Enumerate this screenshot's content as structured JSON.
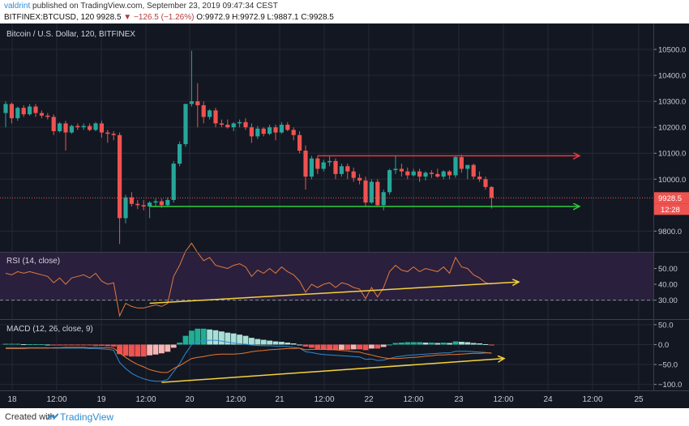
{
  "header": {
    "user": "valdrint",
    "published": "published on TradingView.com, September 23, 2019 09:47:34 CEST",
    "symbol": "BITFINEX:BTCUSD, 120",
    "last": "9928.5",
    "change": "▼ −126.5 (−1.26%)",
    "ohlc": "O:9972.9 H:9972.9 L:9887.1 C:9928.5"
  },
  "footer": {
    "text": "Created with",
    "brand": "TradingView"
  },
  "colors": {
    "background": "#131722",
    "grid": "#252a36",
    "up": "#26a69a",
    "down": "#ef5350",
    "resistance": "#e8383d",
    "support": "#2ecc40",
    "trendline": "#f4d23c",
    "rsi_line": "#e07a3b",
    "rsi_band": "#2a1f3d",
    "macd_line": "#2f8bd3",
    "signal_line": "#e8772e",
    "hist_up_strong": "#1faf95",
    "hist_up_weak": "#a8e0d8",
    "hist_down_strong": "#ef5350",
    "hist_down_weak": "#f5b5b3"
  },
  "chart_data": [
    {
      "type": "candlestick",
      "title": "Bitcoin / U.S. Dollar, 120, BITFINEX",
      "ylim": [
        9720,
        10600
      ],
      "y_ticks": [
        "10500.0",
        "10400.0",
        "10300.0",
        "10200.0",
        "10100.0",
        "10000.0",
        "9800.0"
      ],
      "y_tick_values": [
        10500,
        10400,
        10300,
        10200,
        10100,
        10000,
        9800
      ],
      "price_label": "9928.5",
      "countdown_label": "12:28",
      "x_ticks": [
        "18",
        "12:00",
        "19",
        "12:00",
        "20",
        "12:00",
        "21",
        "12:00",
        "22",
        "12:00",
        "23",
        "12:00",
        "24",
        "12:00",
        "25"
      ],
      "candles": [
        [
          10255,
          10300,
          10200,
          10290
        ],
        [
          10290,
          10295,
          10215,
          10235
        ],
        [
          10235,
          10280,
          10225,
          10275
        ],
        [
          10275,
          10285,
          10240,
          10250
        ],
        [
          10250,
          10290,
          10245,
          10280
        ],
        [
          10280,
          10290,
          10240,
          10255
        ],
        [
          10255,
          10265,
          10235,
          10245
        ],
        [
          10245,
          10255,
          10230,
          10240
        ],
        [
          10240,
          10250,
          10170,
          10185
        ],
        [
          10185,
          10220,
          10180,
          10215
        ],
        [
          10215,
          10225,
          10110,
          10180
        ],
        [
          10180,
          10210,
          10175,
          10205
        ],
        [
          10205,
          10215,
          10190,
          10200
        ],
        [
          10200,
          10215,
          10190,
          10205
        ],
        [
          10205,
          10215,
          10185,
          10190
        ],
        [
          10190,
          10220,
          10185,
          10215
        ],
        [
          10215,
          10225,
          10160,
          10180
        ],
        [
          10180,
          10190,
          10140,
          10175
        ],
        [
          10175,
          10185,
          10150,
          10170
        ],
        [
          10170,
          10180,
          9750,
          9850
        ],
        [
          9850,
          9940,
          9830,
          9930
        ],
        [
          9930,
          9950,
          9895,
          9905
        ],
        [
          9905,
          9920,
          9885,
          9900
        ],
        [
          9900,
          9920,
          9880,
          9895
        ],
        [
          9895,
          9915,
          9850,
          9910
        ],
        [
          9910,
          9925,
          9895,
          9915
        ],
        [
          9915,
          9925,
          9890,
          9900
        ],
        [
          9900,
          9930,
          9895,
          9920
        ],
        [
          9920,
          10070,
          9910,
          10060
        ],
        [
          10060,
          10145,
          10050,
          10135
        ],
        [
          10135,
          10290,
          10125,
          10290
        ],
        [
          10290,
          10495,
          10280,
          10300
        ],
        [
          10300,
          10370,
          10200,
          10285
        ],
        [
          10285,
          10300,
          10215,
          10240
        ],
        [
          10240,
          10270,
          10230,
          10265
        ],
        [
          10265,
          10275,
          10200,
          10215
        ],
        [
          10215,
          10230,
          10200,
          10210
        ],
        [
          10210,
          10230,
          10195,
          10200
        ],
        [
          10200,
          10220,
          10185,
          10215
        ],
        [
          10215,
          10230,
          10200,
          10220
        ],
        [
          10220,
          10235,
          10190,
          10200
        ],
        [
          10200,
          10215,
          10140,
          10165
        ],
        [
          10165,
          10205,
          10155,
          10195
        ],
        [
          10195,
          10200,
          10165,
          10175
        ],
        [
          10175,
          10210,
          10170,
          10200
        ],
        [
          10200,
          10210,
          10150,
          10180
        ],
        [
          10180,
          10220,
          10175,
          10210
        ],
        [
          10210,
          10220,
          10185,
          10190
        ],
        [
          10190,
          10200,
          10150,
          10170
        ],
        [
          10170,
          10185,
          10100,
          10110
        ],
        [
          10110,
          10130,
          9960,
          10010
        ],
        [
          10010,
          10090,
          10000,
          10080
        ],
        [
          10080,
          10090,
          10020,
          10040
        ],
        [
          10040,
          10075,
          10030,
          10065
        ],
        [
          10065,
          10090,
          10050,
          10070
        ],
        [
          10070,
          10080,
          10000,
          10020
        ],
        [
          10020,
          10060,
          10010,
          10050
        ],
        [
          10050,
          10060,
          10000,
          10030
        ],
        [
          10030,
          10045,
          9990,
          10005
        ],
        [
          10005,
          10020,
          9980,
          9995
        ],
        [
          9995,
          10010,
          9895,
          9910
        ],
        [
          9910,
          10000,
          9905,
          9990
        ],
        [
          9990,
          10000,
          9895,
          9900
        ],
        [
          9900,
          9960,
          9880,
          9950
        ],
        [
          9950,
          10040,
          9940,
          10035
        ],
        [
          10035,
          10090,
          10020,
          10040
        ],
        [
          10040,
          10060,
          10010,
          10030
        ],
        [
          10030,
          10045,
          10000,
          10015
        ],
        [
          10015,
          10040,
          10010,
          10030
        ],
        [
          10030,
          10040,
          9990,
          10010
        ],
        [
          10010,
          10030,
          9995,
          10025
        ],
        [
          10025,
          10035,
          10005,
          10020
        ],
        [
          10020,
          10040,
          10005,
          10010
        ],
        [
          10010,
          10035,
          10000,
          10030
        ],
        [
          10030,
          10035,
          10000,
          10015
        ],
        [
          10015,
          10090,
          10005,
          10085
        ],
        [
          10085,
          10095,
          10025,
          10040
        ],
        [
          10040,
          10050,
          10000,
          10055
        ],
        [
          10055,
          10060,
          10000,
          10010
        ],
        [
          10010,
          10030,
          9990,
          10000
        ],
        [
          10000,
          10010,
          9960,
          9970
        ],
        [
          9970,
          9973,
          9887,
          9928
        ]
      ],
      "resistance_level": 10090,
      "support_level": 9895
    },
    {
      "type": "line",
      "title": "RSI (14, close)",
      "ylim": [
        18,
        60
      ],
      "y_ticks": [
        "50.00",
        "40.00",
        "30.00"
      ],
      "y_tick_values": [
        50,
        40,
        30
      ],
      "band": [
        30,
        70
      ],
      "values": [
        47,
        46,
        48,
        47,
        48,
        47,
        46,
        45,
        41,
        44,
        40,
        44,
        45,
        46,
        44,
        47,
        42,
        40,
        41,
        20,
        28,
        26,
        25,
        25,
        26,
        27,
        26,
        28,
        45,
        52,
        61,
        66,
        60,
        55,
        57,
        52,
        51,
        50,
        52,
        53,
        51,
        45,
        49,
        47,
        50,
        47,
        51,
        48,
        46,
        42,
        35,
        40,
        38,
        40,
        41,
        38,
        41,
        40,
        38,
        37,
        31,
        38,
        32,
        38,
        48,
        52,
        49,
        48,
        51,
        48,
        50,
        49,
        48,
        51,
        47,
        57,
        51,
        50,
        46,
        44,
        41,
        40
      ]
    },
    {
      "type": "histogram+line",
      "title": "MACD (12, 26, close, 9)",
      "ylim": [
        -115,
        62
      ],
      "y_ticks": [
        "50.0",
        "0.0",
        "−50.0",
        "−100.0"
      ],
      "y_tick_values": [
        50,
        0,
        -50,
        -100
      ],
      "histogram": [
        2,
        2,
        2,
        1,
        1,
        1,
        1,
        0,
        -1,
        -1,
        -2,
        -2,
        -2,
        -2,
        -2,
        -3,
        -3,
        -4,
        -5,
        -24,
        -28,
        -30,
        -30,
        -30,
        -27,
        -25,
        -22,
        -18,
        -8,
        5,
        22,
        35,
        40,
        40,
        38,
        36,
        33,
        30,
        28,
        25,
        22,
        17,
        14,
        12,
        10,
        8,
        7,
        5,
        3,
        0,
        -5,
        -8,
        -11,
        -13,
        -14,
        -14,
        -13,
        -13,
        -12,
        -12,
        -14,
        -10,
        -10,
        -6,
        0,
        4,
        5,
        6,
        6,
        6,
        5,
        5,
        4,
        5,
        4,
        8,
        7,
        6,
        4,
        3,
        1,
        -1
      ],
      "macd": [
        -8,
        -8,
        -8,
        -8,
        -8,
        -8,
        -8,
        -8,
        -9,
        -9,
        -9,
        -9,
        -9,
        -9,
        -10,
        -10,
        -11,
        -12,
        -14,
        -45,
        -60,
        -72,
        -80,
        -86,
        -90,
        -92,
        -92,
        -88,
        -68,
        -48,
        -22,
        0,
        8,
        10,
        11,
        11,
        9,
        6,
        4,
        2,
        1,
        -1,
        -2,
        -3,
        -3,
        -4,
        -4,
        -5,
        -7,
        -9,
        -18,
        -20,
        -23,
        -25,
        -26,
        -27,
        -28,
        -29,
        -30,
        -31,
        -37,
        -36,
        -40,
        -39,
        -35,
        -31,
        -29,
        -27,
        -26,
        -25,
        -24,
        -23,
        -22,
        -21,
        -21,
        -17,
        -17,
        -17,
        -18,
        -19,
        -20,
        -22
      ],
      "signal": [
        -10,
        -10,
        -10,
        -10,
        -9,
        -9,
        -9,
        -9,
        -8,
        -8,
        -7,
        -7,
        -7,
        -7,
        -8,
        -7,
        -8,
        -8,
        -9,
        -21,
        -32,
        -42,
        -50,
        -56,
        -63,
        -67,
        -70,
        -70,
        -60,
        -53,
        -44,
        -35,
        -32,
        -30,
        -27,
        -25,
        -24,
        -24,
        -24,
        -23,
        -21,
        -18,
        -16,
        -15,
        -13,
        -12,
        -11,
        -10,
        -10,
        -9,
        -13,
        -12,
        -12,
        -12,
        -12,
        -13,
        -15,
        -16,
        -18,
        -19,
        -23,
        -26,
        -30,
        -33,
        -35,
        -35,
        -34,
        -33,
        -32,
        -31,
        -29,
        -28,
        -26,
        -26,
        -25,
        -25,
        -24,
        -23,
        -22,
        -22,
        -21,
        -21
      ]
    }
  ]
}
